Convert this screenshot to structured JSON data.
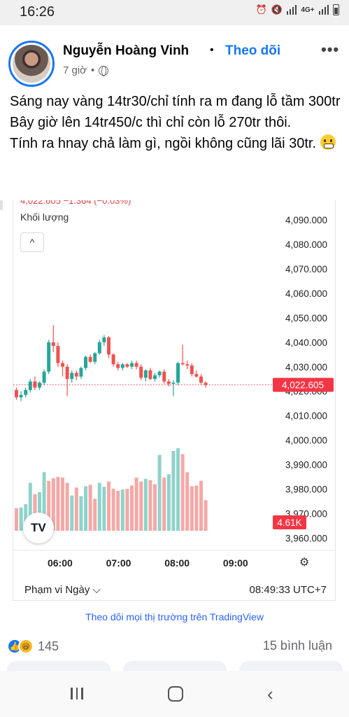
{
  "status_bar": {
    "time": "16:26",
    "network": "4G+"
  },
  "post": {
    "author": "Nguyễn Hoàng Vinh",
    "separator": "•",
    "follow_label": "Theo dõi",
    "time_ago": "7 giờ",
    "meta_dot": "•",
    "more_label": "•••",
    "text_lines": [
      "Sáng nay vàng 14tr30/chỉ tính ra m đang lỗ tầm 300tr",
      "Bây giờ lên 14tr450/c thì chỉ còn lỗ 270tr thôi.",
      "Tính ra hnay chả làm gì, ngồi không cũng lãi 30tr."
    ]
  },
  "chart_widget": {
    "header_clipped": "4,022.605  −1.364 (−0.03%)",
    "volume_label": "Khối lượng",
    "collapse_icon": "^",
    "logo_text": "TV",
    "range_label": "Phạm vi Ngày ⌵",
    "clock": "08:49:33 UTC+7",
    "settings_icon": "⚙",
    "footer_link": "Theo dõi mọi thị trường trên TradingView"
  },
  "chart_data": {
    "type": "candlestick",
    "title": "",
    "price_axis_ticks": [
      4090,
      4080,
      4070,
      4060,
      4050,
      4040,
      4030,
      4020,
      4010,
      4000,
      3990,
      3980,
      3970,
      3960
    ],
    "price_axis_labels": [
      "4,090.000",
      "4,080.000",
      "4,070.000",
      "4,060.000",
      "4,050.000",
      "4,040.000",
      "4,030.000",
      "4,020.000",
      "4,010.000",
      "4,000.000",
      "3,990.000",
      "3,980.000",
      "3,970.000",
      "3,960.000"
    ],
    "time_labels": [
      {
        "label": "06:00",
        "time": 6.0
      },
      {
        "label": "07:00",
        "time": 7.0
      },
      {
        "label": "08:00",
        "time": 8.0
      },
      {
        "label": "09:00",
        "time": 9.0
      }
    ],
    "ylim": [
      3955,
      4098
    ],
    "xlim": [
      5.2,
      9.6
    ],
    "last_price": 4022.605,
    "last_price_label": "4,022.605",
    "last_volume_label": "4.61K",
    "colors": {
      "up": "#26a69a",
      "down": "#ef5350",
      "up_vol": "#8fd3cb",
      "down_vol": "#f4a8a6",
      "last": "#f23645"
    },
    "candles": [
      {
        "o": 4020.5,
        "h": 4021.5,
        "l": 4016.5,
        "c": 4017.5
      },
      {
        "o": 4017.5,
        "h": 4020.0,
        "l": 4016.0,
        "c": 4018.5
      },
      {
        "o": 4018.5,
        "h": 4021.5,
        "l": 4017.5,
        "c": 4020.5
      },
      {
        "o": 4020.5,
        "h": 4025.0,
        "l": 4019.5,
        "c": 4024.0
      },
      {
        "o": 4024.0,
        "h": 4026.0,
        "l": 4020.5,
        "c": 4021.5
      },
      {
        "o": 4021.5,
        "h": 4024.0,
        "l": 4020.5,
        "c": 4023.5
      },
      {
        "o": 4023.5,
        "h": 4029.0,
        "l": 4022.5,
        "c": 4028.0
      },
      {
        "o": 4028.0,
        "h": 4041.0,
        "l": 4027.0,
        "c": 4040.0
      },
      {
        "o": 4040.0,
        "h": 4047.0,
        "l": 4036.0,
        "c": 4038.5
      },
      {
        "o": 4038.5,
        "h": 4040.0,
        "l": 4030.0,
        "c": 4031.5
      },
      {
        "o": 4031.5,
        "h": 4032.5,
        "l": 4026.0,
        "c": 4030.0
      },
      {
        "o": 4030.0,
        "h": 4031.0,
        "l": 4018.0,
        "c": 4025.0
      },
      {
        "o": 4025.0,
        "h": 4028.5,
        "l": 4023.5,
        "c": 4027.5
      },
      {
        "o": 4027.5,
        "h": 4028.5,
        "l": 4024.5,
        "c": 4026.0
      },
      {
        "o": 4026.0,
        "h": 4030.0,
        "l": 4025.0,
        "c": 4029.5
      },
      {
        "o": 4029.5,
        "h": 4034.5,
        "l": 4028.5,
        "c": 4034.0
      },
      {
        "o": 4034.0,
        "h": 4035.0,
        "l": 4031.5,
        "c": 4032.0
      },
      {
        "o": 4032.0,
        "h": 4036.0,
        "l": 4031.0,
        "c": 4035.5
      },
      {
        "o": 4035.5,
        "h": 4041.0,
        "l": 4035.0,
        "c": 4040.0
      },
      {
        "o": 4040.0,
        "h": 4043.0,
        "l": 4038.5,
        "c": 4042.0
      },
      {
        "o": 4042.0,
        "h": 4042.5,
        "l": 4033.5,
        "c": 4035.0
      },
      {
        "o": 4035.0,
        "h": 4035.5,
        "l": 4030.0,
        "c": 4031.0
      },
      {
        "o": 4031.0,
        "h": 4032.0,
        "l": 4028.5,
        "c": 4029.5
      },
      {
        "o": 4029.5,
        "h": 4031.5,
        "l": 4028.5,
        "c": 4031.0
      },
      {
        "o": 4031.0,
        "h": 4031.5,
        "l": 4029.5,
        "c": 4030.0
      },
      {
        "o": 4030.0,
        "h": 4032.5,
        "l": 4029.0,
        "c": 4031.5
      },
      {
        "o": 4031.5,
        "h": 4032.5,
        "l": 4029.0,
        "c": 4030.0
      },
      {
        "o": 4030.0,
        "h": 4031.0,
        "l": 4024.5,
        "c": 4025.5
      },
      {
        "o": 4025.5,
        "h": 4029.0,
        "l": 4024.0,
        "c": 4028.5
      },
      {
        "o": 4028.5,
        "h": 4029.5,
        "l": 4024.5,
        "c": 4025.0
      },
      {
        "o": 4025.0,
        "h": 4027.5,
        "l": 4024.0,
        "c": 4026.5
      },
      {
        "o": 4026.5,
        "h": 4028.5,
        "l": 4025.5,
        "c": 4028.0
      },
      {
        "o": 4028.0,
        "h": 4029.0,
        "l": 4023.0,
        "c": 4024.0
      },
      {
        "o": 4024.0,
        "h": 4025.0,
        "l": 4022.0,
        "c": 4023.0
      },
      {
        "o": 4023.0,
        "h": 4024.5,
        "l": 4018.0,
        "c": 4023.5
      },
      {
        "o": 4023.5,
        "h": 4032.0,
        "l": 4022.5,
        "c": 4031.5
      },
      {
        "o": 4031.5,
        "h": 4039.0,
        "l": 4030.5,
        "c": 4031.0
      },
      {
        "o": 4031.0,
        "h": 4032.5,
        "l": 4029.0,
        "c": 4030.5
      },
      {
        "o": 4030.5,
        "h": 4031.5,
        "l": 4026.0,
        "c": 4027.0
      },
      {
        "o": 4027.0,
        "h": 4028.5,
        "l": 4025.5,
        "c": 4026.0
      },
      {
        "o": 4026.0,
        "h": 4027.0,
        "l": 4022.5,
        "c": 4023.5
      },
      {
        "o": 4023.5,
        "h": 4024.0,
        "l": 4021.5,
        "c": 4022.6
      }
    ],
    "volumes": [
      {
        "v": 3.4,
        "up": false
      },
      {
        "v": 3.5,
        "up": true
      },
      {
        "v": 4.0,
        "up": true
      },
      {
        "v": 7.2,
        "up": true
      },
      {
        "v": 5.5,
        "up": false
      },
      {
        "v": 5.8,
        "up": true
      },
      {
        "v": 8.8,
        "up": true
      },
      {
        "v": 7.5,
        "up": false
      },
      {
        "v": 7.9,
        "up": false
      },
      {
        "v": 8.1,
        "up": false
      },
      {
        "v": 8.0,
        "up": false
      },
      {
        "v": 7.2,
        "up": false
      },
      {
        "v": 5.3,
        "up": true
      },
      {
        "v": 6.5,
        "up": false
      },
      {
        "v": 5.2,
        "up": true
      },
      {
        "v": 6.7,
        "up": true
      },
      {
        "v": 6.9,
        "up": false
      },
      {
        "v": 4.8,
        "up": false
      },
      {
        "v": 7.2,
        "up": true
      },
      {
        "v": 6.6,
        "up": true
      },
      {
        "v": 7.4,
        "up": false
      },
      {
        "v": 6.3,
        "up": false
      },
      {
        "v": 6.0,
        "up": false
      },
      {
        "v": 6.2,
        "up": true
      },
      {
        "v": 6.3,
        "up": false
      },
      {
        "v": 6.8,
        "up": false
      },
      {
        "v": 8.0,
        "up": false
      },
      {
        "v": 7.4,
        "up": false
      },
      {
        "v": 7.8,
        "up": true
      },
      {
        "v": 7.6,
        "up": false
      },
      {
        "v": 7.0,
        "up": false
      },
      {
        "v": 11.4,
        "up": true
      },
      {
        "v": 8.0,
        "up": false
      },
      {
        "v": 8.5,
        "up": true
      },
      {
        "v": 12.0,
        "up": true
      },
      {
        "v": 12.4,
        "up": true
      },
      {
        "v": 11.5,
        "up": false
      },
      {
        "v": 8.8,
        "up": false
      },
      {
        "v": 6.7,
        "up": false
      },
      {
        "v": 6.8,
        "up": false
      },
      {
        "v": 7.5,
        "up": false
      },
      {
        "v": 4.6,
        "up": false
      }
    ]
  },
  "engagement": {
    "like_icon": "👍",
    "haha_icon": "😆",
    "reaction_count": "145",
    "comments": "15 bình luận"
  }
}
